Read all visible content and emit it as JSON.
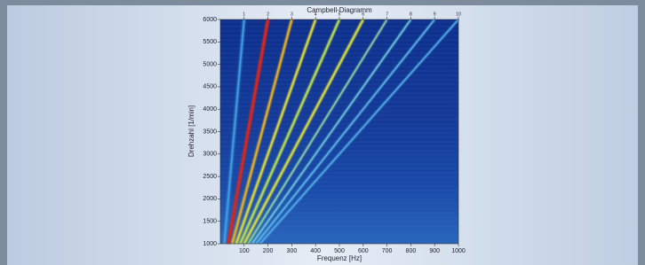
{
  "chart_data": {
    "type": "campbell",
    "title": "Campbell-Diagramm",
    "x_label": "Frequenz [Hz]",
    "y_label": "Drehzahl [1/min]",
    "xlim": [
      0,
      1000
    ],
    "ylim": [
      1000,
      6000
    ],
    "xticks": [
      100,
      200,
      300,
      400,
      500,
      600,
      700,
      800,
      900,
      1000
    ],
    "yticks": [
      1000,
      1500,
      2000,
      2500,
      3000,
      3500,
      4000,
      4500,
      5000,
      5500,
      6000
    ],
    "order_ticks": [
      1,
      2,
      3,
      4,
      5,
      6,
      7,
      8,
      9,
      10
    ],
    "orders": [
      {
        "order": 1,
        "color": "#3f9fe0"
      },
      {
        "order": 2,
        "color": "#d8281a"
      },
      {
        "order": 3,
        "color": "#e8b020"
      },
      {
        "order": 4,
        "color": "#dcd83a"
      },
      {
        "order": 5,
        "color": "#b8dc50"
      },
      {
        "order": 6,
        "color": "#d6da3c"
      },
      {
        "order": 7,
        "color": "#8cd0a0"
      },
      {
        "order": 8,
        "color": "#6cc4d8"
      },
      {
        "order": 9,
        "color": "#5ab4e4"
      },
      {
        "order": 10,
        "color": "#52ace4"
      }
    ]
  }
}
